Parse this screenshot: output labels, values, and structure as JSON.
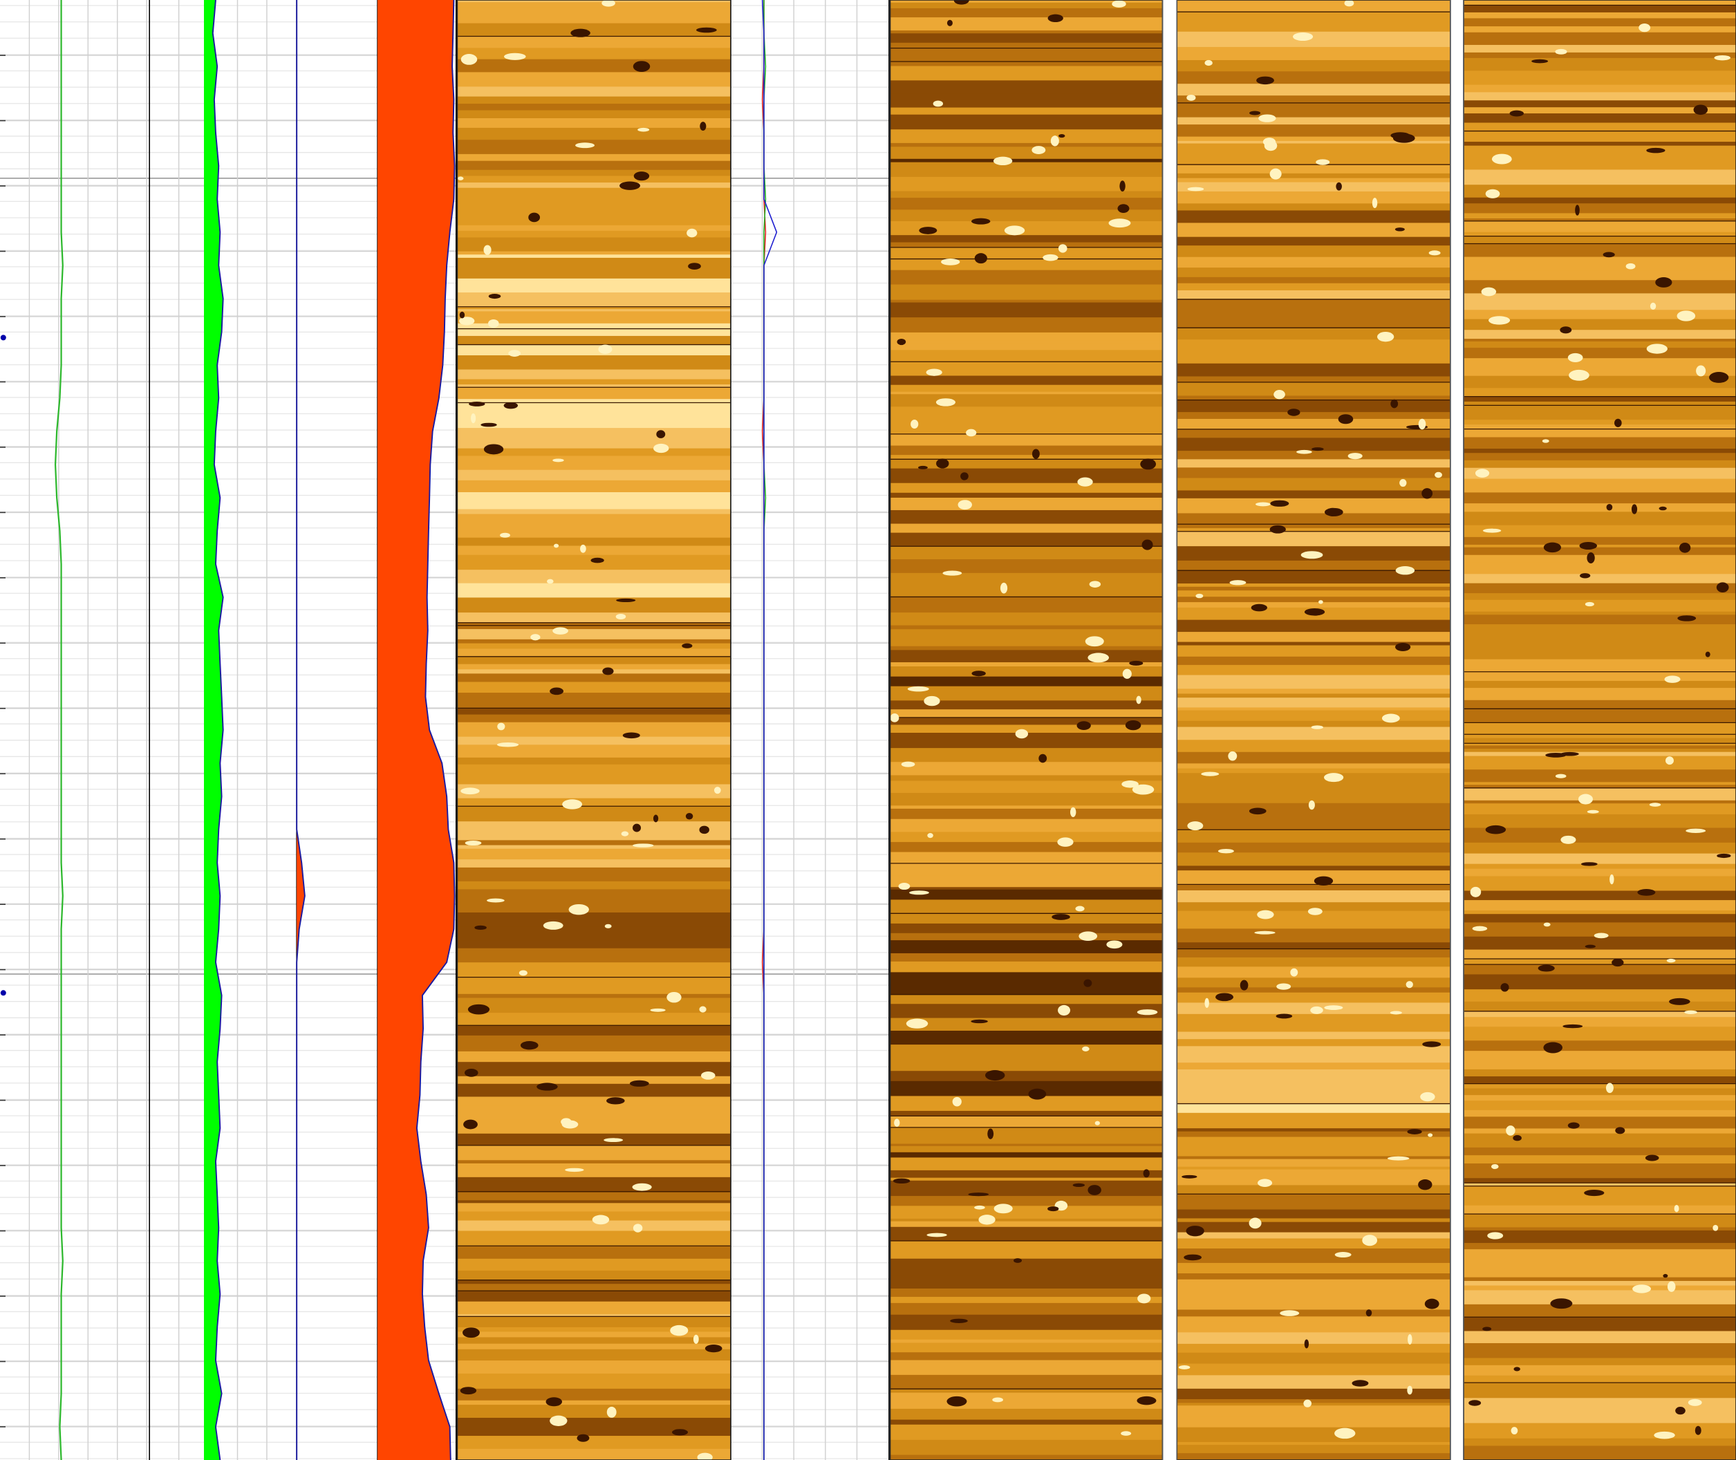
{
  "chart_data": [
    {
      "type": "line",
      "color": "#2db82d",
      "xlim": [
        0,
        100
      ],
      "values": [
        41,
        41,
        41,
        41,
        41,
        41,
        41,
        41,
        42,
        41,
        41,
        41,
        40,
        38,
        37,
        38,
        40,
        41,
        41,
        41,
        41,
        41,
        41,
        41,
        41,
        41,
        41,
        42,
        41,
        41,
        41,
        41,
        41,
        41,
        41,
        41,
        41,
        41,
        42,
        41,
        41,
        41,
        41,
        40,
        41
      ]
    },
    {
      "type": "area",
      "color": "#00ff00",
      "xlim": [
        0,
        100
      ],
      "baseline": 37,
      "values": [
        45,
        43,
        46,
        44,
        45,
        47,
        46,
        48,
        47,
        50,
        49,
        46,
        47,
        45,
        44,
        48,
        46,
        45,
        50,
        47,
        48,
        49,
        50,
        48,
        49,
        47,
        46,
        48,
        47,
        45,
        49,
        48,
        46,
        47,
        48,
        45,
        46,
        47,
        46,
        48,
        46,
        45,
        49,
        45,
        48
      ]
    },
    {
      "type": "area",
      "color": "#ff4500",
      "xlim": [
        0,
        100
      ],
      "baseline": 0,
      "values": [
        0,
        0,
        0,
        0,
        0,
        0,
        0,
        0,
        0,
        0,
        0,
        0,
        0,
        0,
        0,
        0,
        0,
        0,
        0,
        0,
        0,
        0,
        0,
        0,
        0,
        0,
        6,
        10,
        3,
        0,
        0,
        0,
        0,
        0,
        0,
        0,
        0,
        0,
        0,
        0,
        0,
        0,
        0,
        0,
        0
      ]
    },
    {
      "type": "area",
      "color": "#ff4500",
      "xlim": [
        0,
        100
      ],
      "baseline": 0,
      "values": [
        97,
        96,
        95,
        97,
        96,
        98,
        97,
        92,
        88,
        86,
        85,
        83,
        78,
        70,
        67,
        66,
        65,
        64,
        63,
        64,
        62,
        61,
        66,
        82,
        88,
        90,
        97,
        98,
        97,
        88,
        57,
        58,
        55,
        54,
        50,
        55,
        62,
        65,
        58,
        57,
        60,
        65,
        78,
        92,
        93
      ]
    },
    {
      "type": "multiline",
      "xlim": [
        0,
        100
      ],
      "series": [
        {
          "color": "#e02020",
          "values": [
            21,
            21,
            21,
            20,
            21,
            21,
            21,
            22,
            21,
            21,
            21,
            21,
            21,
            20,
            21,
            21,
            21,
            21,
            21,
            21,
            21,
            21,
            21,
            21,
            21,
            21,
            21,
            21,
            21,
            20,
            21,
            21,
            21,
            21,
            21,
            21,
            21,
            21,
            21,
            21,
            21,
            21,
            21,
            21,
            21
          ]
        },
        {
          "color": "#20b020",
          "values": [
            21,
            21,
            22,
            21,
            21,
            21,
            22,
            21,
            21,
            21,
            21,
            21,
            21,
            21,
            21,
            22,
            21,
            21,
            21,
            21,
            21,
            21,
            21,
            21,
            21,
            21,
            21,
            21,
            21,
            21,
            21,
            21,
            21,
            21,
            21,
            21,
            21,
            21,
            21,
            21,
            21,
            21,
            21,
            21,
            21
          ]
        },
        {
          "color": "#2020d0",
          "values": [
            20,
            21,
            21,
            21,
            21,
            21,
            21,
            29,
            21,
            21,
            21,
            21,
            21,
            21,
            21,
            21,
            21,
            21,
            21,
            21,
            21,
            21,
            21,
            21,
            21,
            21,
            21,
            21,
            21,
            21,
            21,
            21,
            21,
            21,
            21,
            21,
            21,
            21,
            21,
            21,
            21,
            21,
            21,
            21,
            21
          ]
        }
      ]
    }
  ]
}
